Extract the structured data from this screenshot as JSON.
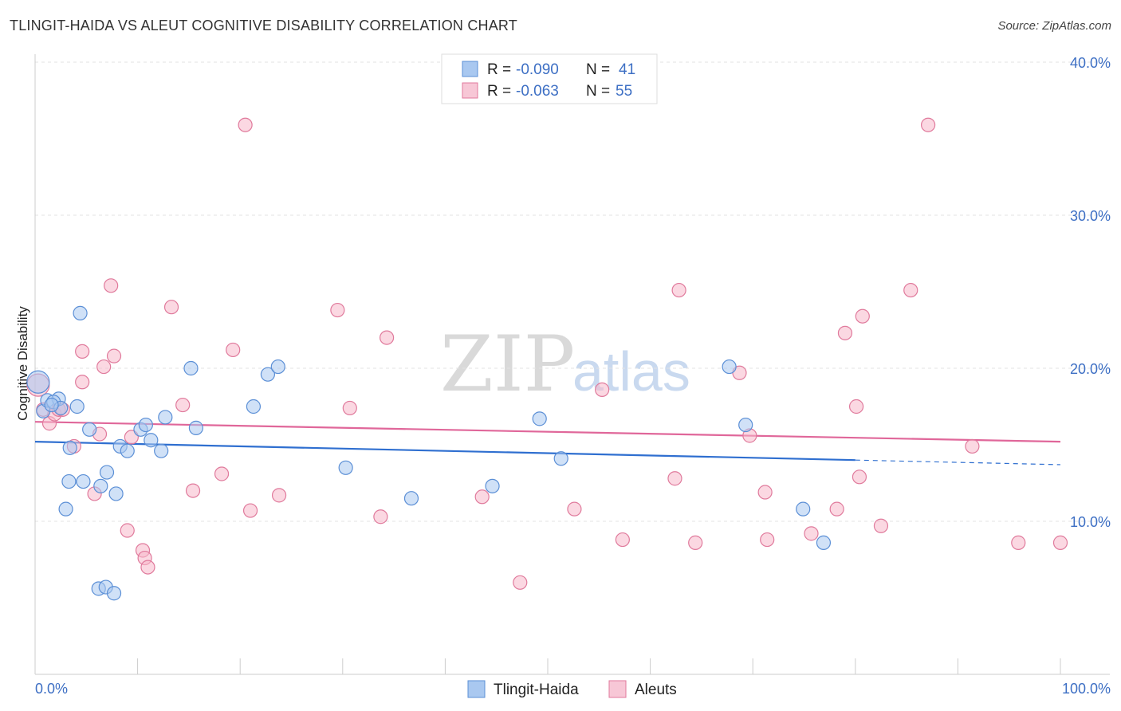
{
  "header": {
    "title": "TLINGIT-HAIDA VS ALEUT COGNITIVE DISABILITY CORRELATION CHART",
    "source": "Source: ZipAtlas.com"
  },
  "watermark": {
    "zip": "ZIP",
    "atlas": "atlas"
  },
  "legend": {
    "series1": {
      "r_label": "R =",
      "r_value": "-0.090",
      "n_label": "N =",
      "n_value": "41"
    },
    "series2": {
      "r_label": "R =",
      "r_value": "-0.063",
      "n_label": "N =",
      "n_value": "55"
    }
  },
  "colors": {
    "blue_fill": "#a9c8f0",
    "blue_stroke": "#5b8fd6",
    "blue_line": "#2f6fd0",
    "pink_fill": "#f7b8cb",
    "pink_stroke": "#e07a9c",
    "pink_line": "#e0679a"
  },
  "chart_data": {
    "type": "scatter",
    "title": "TLINGIT-HAIDA VS ALEUT COGNITIVE DISABILITY CORRELATION CHART",
    "xlabel": "",
    "ylabel": "Cognitive Disability",
    "xlim": [
      0,
      100
    ],
    "ylim": [
      0,
      40
    ],
    "x_tick_labels": {
      "left": "0.0%",
      "right": "100.0%"
    },
    "y_ticks": [
      {
        "value": 10,
        "label": "10.0%"
      },
      {
        "value": 20,
        "label": "20.0%"
      },
      {
        "value": 30,
        "label": "30.0%"
      },
      {
        "value": 40,
        "label": "40.0%"
      }
    ],
    "series": [
      {
        "name": "Tlingit-Haida",
        "color": "blue",
        "r": -0.09,
        "n": 41,
        "trend": {
          "x0": 0,
          "y0": 15.2,
          "x1": 80,
          "y1": 14.0,
          "dashed_to_x": 100,
          "dashed_to_y": 13.7
        },
        "points": [
          [
            0.3,
            19.1
          ],
          [
            0.8,
            17.2
          ],
          [
            1.2,
            17.9
          ],
          [
            2.3,
            18.0
          ],
          [
            1.8,
            17.8
          ],
          [
            2.5,
            17.4
          ],
          [
            4.4,
            23.6
          ],
          [
            4.1,
            17.5
          ],
          [
            5.3,
            16.0
          ],
          [
            3.3,
            12.6
          ],
          [
            4.7,
            12.6
          ],
          [
            3.0,
            10.8
          ],
          [
            6.4,
            12.3
          ],
          [
            7.0,
            13.2
          ],
          [
            7.9,
            11.8
          ],
          [
            8.3,
            14.9
          ],
          [
            9.0,
            14.6
          ],
          [
            10.3,
            16.0
          ],
          [
            10.8,
            16.3
          ],
          [
            11.3,
            15.3
          ],
          [
            12.3,
            14.6
          ],
          [
            12.7,
            16.8
          ],
          [
            15.2,
            20.0
          ],
          [
            15.7,
            16.1
          ],
          [
            21.3,
            17.5
          ],
          [
            22.7,
            19.6
          ],
          [
            23.7,
            20.1
          ],
          [
            30.3,
            13.5
          ],
          [
            36.7,
            11.5
          ],
          [
            44.6,
            12.3
          ],
          [
            49.2,
            16.7
          ],
          [
            51.3,
            14.1
          ],
          [
            67.7,
            20.1
          ],
          [
            69.3,
            16.3
          ],
          [
            74.9,
            10.8
          ],
          [
            76.9,
            8.6
          ],
          [
            6.2,
            5.6
          ],
          [
            6.9,
            5.7
          ],
          [
            7.7,
            5.3
          ],
          [
            3.4,
            14.8
          ],
          [
            1.6,
            17.6
          ]
        ]
      },
      {
        "name": "Aleuts",
        "color": "pink",
        "r": -0.063,
        "n": 55,
        "trend": {
          "x0": 0,
          "y0": 16.5,
          "x1": 100,
          "y1": 15.2
        },
        "points": [
          [
            0.3,
            18.9
          ],
          [
            0.8,
            17.3
          ],
          [
            1.4,
            16.4
          ],
          [
            1.9,
            17.0
          ],
          [
            2.3,
            17.3
          ],
          [
            2.7,
            17.3
          ],
          [
            3.8,
            14.9
          ],
          [
            4.6,
            21.1
          ],
          [
            4.6,
            19.1
          ],
          [
            5.8,
            11.8
          ],
          [
            6.3,
            15.7
          ],
          [
            6.7,
            20.1
          ],
          [
            7.4,
            25.4
          ],
          [
            7.7,
            20.8
          ],
          [
            9.0,
            9.4
          ],
          [
            9.4,
            15.5
          ],
          [
            10.5,
            8.1
          ],
          [
            10.7,
            7.6
          ],
          [
            11.0,
            7.0
          ],
          [
            13.3,
            24.0
          ],
          [
            14.4,
            17.6
          ],
          [
            15.4,
            12.0
          ],
          [
            18.2,
            13.1
          ],
          [
            19.3,
            21.2
          ],
          [
            20.5,
            35.9
          ],
          [
            21.0,
            10.7
          ],
          [
            23.8,
            11.7
          ],
          [
            29.5,
            23.8
          ],
          [
            30.7,
            17.4
          ],
          [
            33.7,
            10.3
          ],
          [
            34.3,
            22.0
          ],
          [
            43.6,
            11.6
          ],
          [
            47.3,
            6.0
          ],
          [
            52.6,
            10.8
          ],
          [
            55.3,
            18.6
          ],
          [
            57.3,
            8.8
          ],
          [
            62.4,
            12.8
          ],
          [
            62.8,
            25.1
          ],
          [
            68.7,
            19.7
          ],
          [
            69.7,
            15.6
          ],
          [
            71.2,
            11.9
          ],
          [
            71.4,
            8.8
          ],
          [
            75.7,
            9.2
          ],
          [
            78.2,
            10.8
          ],
          [
            79.0,
            22.3
          ],
          [
            80.1,
            17.5
          ],
          [
            80.4,
            12.9
          ],
          [
            80.7,
            23.4
          ],
          [
            82.5,
            9.7
          ],
          [
            85.4,
            25.1
          ],
          [
            87.1,
            35.9
          ],
          [
            91.4,
            14.9
          ],
          [
            95.9,
            8.6
          ],
          [
            100.0,
            8.6
          ],
          [
            64.4,
            8.6
          ]
        ]
      }
    ]
  },
  "bottom_legend": {
    "series1": "Tlingit-Haida",
    "series2": "Aleuts"
  }
}
